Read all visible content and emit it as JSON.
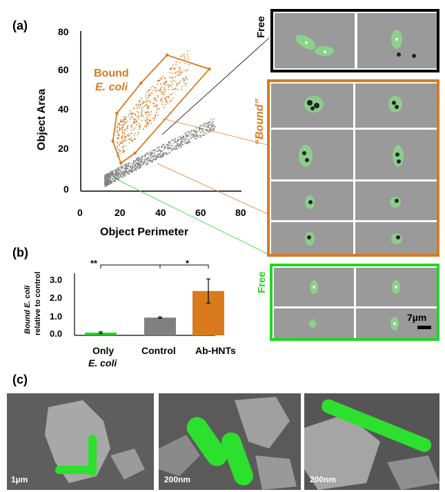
{
  "panels": {
    "a_label": "(a)",
    "b_label": "(b)",
    "c_label": "(c)"
  },
  "scatter": {
    "xlabel": "Object Perimeter",
    "ylabel": "Object Area",
    "annotation_line1": "Bound",
    "annotation_line2": "E. coli",
    "x_ticks": [
      "0",
      "20",
      "40",
      "60",
      "80"
    ],
    "y_ticks": [
      "0",
      "20",
      "40",
      "60",
      "80"
    ]
  },
  "image_groups": {
    "free_top_label": "Free",
    "bound_label": "“Bound”",
    "free_bottom_label": "Free",
    "scale_label": "7µm"
  },
  "colors": {
    "bound": "#d97a1e",
    "free_outline": "#23d623",
    "black": "#000000",
    "control_bar": "#808080",
    "only_ecoli_bar": "#22cc22"
  },
  "bar_chart": {
    "ylabel_line1": "Bound E. coli",
    "ylabel_line2": "relative to control",
    "sig1": "**",
    "sig2": "*",
    "categories": [
      "Only",
      "Control",
      "Ab-HNTs"
    ],
    "category_sub": "E. coli",
    "y_ticks": [
      "0.0",
      "1.0",
      "2.0",
      "3.0"
    ]
  },
  "sem": {
    "scale1": "1µm",
    "scale2": "200nm",
    "scale3": "200nm"
  },
  "chart_data": [
    {
      "type": "scatter",
      "xlabel": "Object Perimeter",
      "ylabel": "Object Area",
      "xlim": [
        0,
        80
      ],
      "ylim": [
        0,
        80
      ],
      "annotation": "Bound E. coli",
      "bound_region_polygon": [
        [
          16,
          25
        ],
        [
          18,
          39
        ],
        [
          30,
          54
        ],
        [
          43,
          68
        ],
        [
          64,
          61
        ],
        [
          27,
          19
        ],
        [
          20,
          14
        ],
        [
          16,
          25
        ]
      ],
      "series": [
        {
          "name": "Bound E. coli",
          "color": "#d97a1e"
        },
        {
          "color": "#808080"
        }
      ]
    },
    {
      "type": "bar",
      "categories": [
        "Only E. coli",
        "Control",
        "Ab-HNTs"
      ],
      "values": [
        0.15,
        1.0,
        2.5
      ],
      "errors": [
        0.05,
        0.04,
        0.68
      ],
      "ylabel": "Bound E. coli relative to control",
      "ylim": [
        0,
        3.5
      ],
      "significance": [
        {
          "between": [
            "Only E. coli",
            "Control"
          ],
          "mark": "**"
        },
        {
          "between": [
            "Control",
            "Ab-HNTs"
          ],
          "mark": "*"
        }
      ]
    }
  ]
}
